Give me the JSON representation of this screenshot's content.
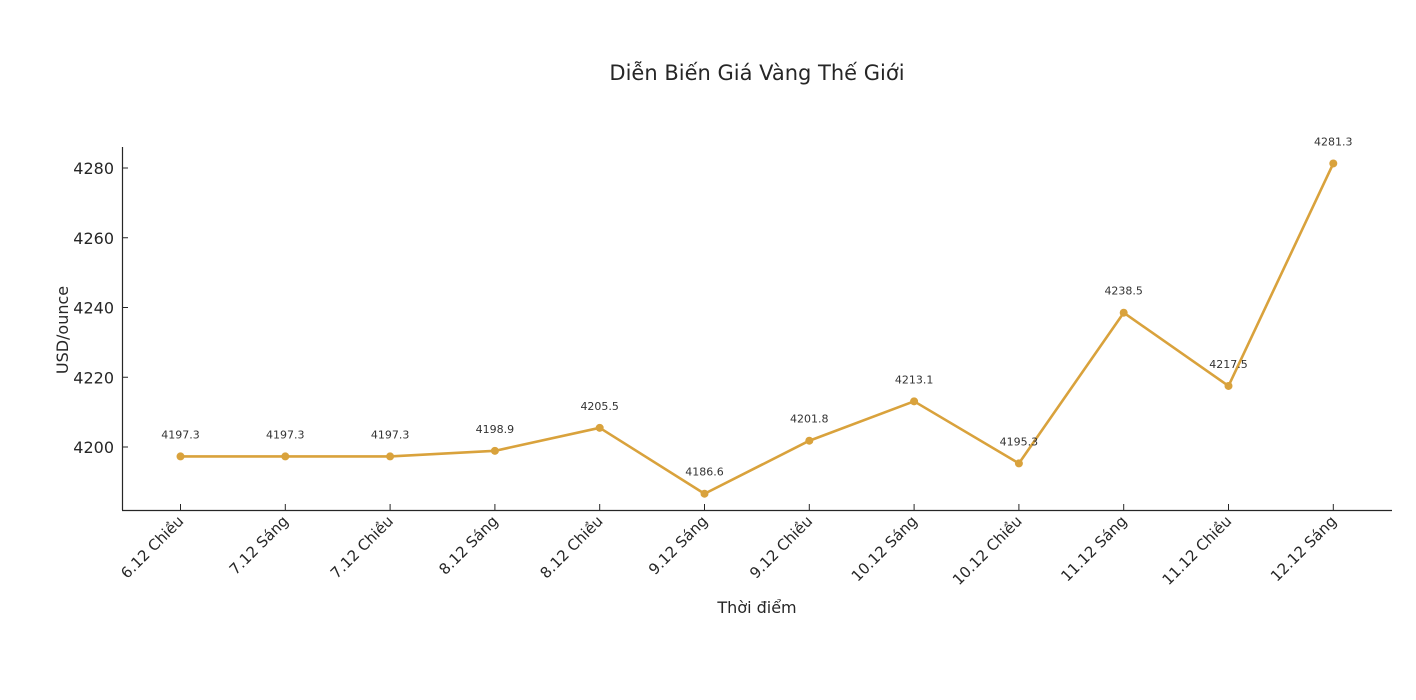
{
  "chart_data": {
    "type": "line",
    "title": "Diễn Biến Giá Vàng Thế Giới",
    "xlabel": "Thời điểm",
    "ylabel": "USD/ounce",
    "categories": [
      "6.12 Chiều",
      "7.12 Sáng",
      "7.12 Chiều",
      "8.12 Sáng",
      "8.12 Chiều",
      "9.12 Sáng",
      "9.12 Chiều",
      "10.12 Sáng",
      "10.12 Chiều",
      "11.12 Sáng",
      "11.12 Chiều",
      "12.12 Sáng"
    ],
    "series": [
      {
        "name": "Giá vàng thế giới",
        "color": "#D9A23C",
        "values": [
          4197.3,
          4197.3,
          4197.3,
          4198.9,
          4205.5,
          4186.6,
          4201.8,
          4213.1,
          4195.3,
          4238.5,
          4217.5,
          4281.3
        ]
      }
    ],
    "data_labels": [
      "4197.3",
      "4197.3",
      "4197.3",
      "4198.9",
      "4205.5",
      "4186.6",
      "4201.8",
      "4213.1",
      "4195.3",
      "4238.5",
      "4217.5",
      "4281.3"
    ],
    "yticks": [
      4200,
      4220,
      4240,
      4260,
      4280
    ],
    "ylim": [
      4182.1,
      4285.8
    ],
    "grid": false,
    "legend": null,
    "x_tick_rotation": 45
  }
}
